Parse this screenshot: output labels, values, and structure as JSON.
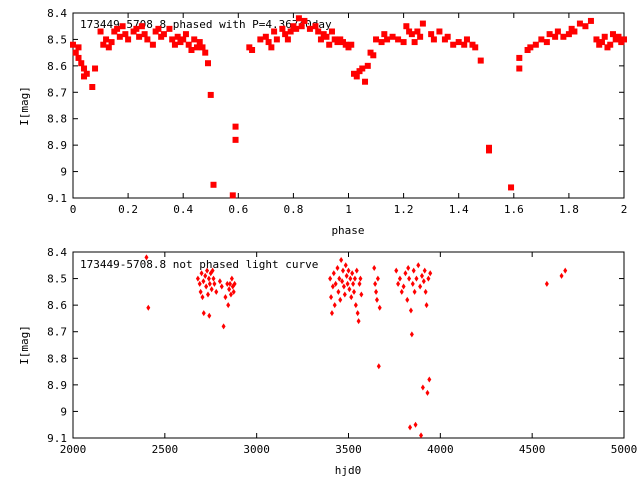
{
  "chart_data": [
    {
      "type": "scatter",
      "title": "173449-5708.8 phased with P=4.36740day",
      "xlabel": "phase",
      "ylabel": "I[mag]",
      "xlim": [
        0,
        2
      ],
      "ylim": [
        8.4,
        9.1
      ],
      "y_reversed": true,
      "grid": false,
      "marker_color": "#ff0000",
      "marker": "square",
      "x_ticks": [
        0,
        0.2,
        0.4,
        0.6,
        0.8,
        1,
        1.2,
        1.4,
        1.6,
        1.8,
        2
      ],
      "x_tick_labels": [
        "0",
        "0.2",
        "0.4",
        "0.6",
        "0.8",
        "1",
        "1.2",
        "1.4",
        "1.6",
        "1.8",
        "2"
      ],
      "y_ticks": [
        8.4,
        8.5,
        8.6,
        8.7,
        8.8,
        8.9,
        9,
        9.1
      ],
      "y_tick_labels": [
        "8.4",
        "8.5",
        "8.6",
        "8.7",
        "8.8",
        "8.9",
        "9",
        "9.1"
      ],
      "points": [
        [
          0.0,
          8.52
        ],
        [
          0.01,
          8.55
        ],
        [
          0.02,
          8.53
        ],
        [
          0.02,
          8.57
        ],
        [
          0.03,
          8.59
        ],
        [
          0.04,
          8.61
        ],
        [
          0.04,
          8.64
        ],
        [
          0.05,
          8.63
        ],
        [
          0.07,
          8.68
        ],
        [
          0.08,
          8.61
        ],
        [
          0.1,
          8.47
        ],
        [
          0.11,
          8.52
        ],
        [
          0.12,
          8.5
        ],
        [
          0.13,
          8.53
        ],
        [
          0.14,
          8.51
        ],
        [
          0.15,
          8.47
        ],
        [
          0.16,
          8.46
        ],
        [
          0.17,
          8.49
        ],
        [
          0.18,
          8.45
        ],
        [
          0.19,
          8.48
        ],
        [
          0.2,
          8.5
        ],
        [
          0.22,
          8.47
        ],
        [
          0.23,
          8.46
        ],
        [
          0.24,
          8.49
        ],
        [
          0.25,
          8.45
        ],
        [
          0.26,
          8.48
        ],
        [
          0.27,
          8.5
        ],
        [
          0.29,
          8.52
        ],
        [
          0.3,
          8.47
        ],
        [
          0.31,
          8.46
        ],
        [
          0.32,
          8.49
        ],
        [
          0.33,
          8.48
        ],
        [
          0.35,
          8.46
        ],
        [
          0.36,
          8.5
        ],
        [
          0.37,
          8.52
        ],
        [
          0.38,
          8.49
        ],
        [
          0.39,
          8.51
        ],
        [
          0.4,
          8.5
        ],
        [
          0.41,
          8.48
        ],
        [
          0.42,
          8.52
        ],
        [
          0.43,
          8.54
        ],
        [
          0.44,
          8.5
        ],
        [
          0.45,
          8.53
        ],
        [
          0.46,
          8.51
        ],
        [
          0.47,
          8.53
        ],
        [
          0.48,
          8.55
        ],
        [
          0.49,
          8.59
        ],
        [
          0.5,
          8.71
        ],
        [
          0.51,
          9.05
        ],
        [
          0.58,
          9.09
        ],
        [
          0.59,
          8.83
        ],
        [
          0.59,
          8.88
        ],
        [
          0.64,
          8.53
        ],
        [
          0.65,
          8.54
        ],
        [
          0.68,
          8.5
        ],
        [
          0.7,
          8.49
        ],
        [
          0.71,
          8.51
        ],
        [
          0.72,
          8.53
        ],
        [
          0.73,
          8.47
        ],
        [
          0.74,
          8.5
        ],
        [
          0.76,
          8.46
        ],
        [
          0.77,
          8.48
        ],
        [
          0.78,
          8.5
        ],
        [
          0.79,
          8.47
        ],
        [
          0.8,
          8.45
        ],
        [
          0.81,
          8.46
        ],
        [
          0.82,
          8.42
        ],
        [
          0.83,
          8.45
        ],
        [
          0.84,
          8.43
        ],
        [
          0.86,
          8.46
        ],
        [
          0.88,
          8.45
        ],
        [
          0.89,
          8.47
        ],
        [
          0.9,
          8.5
        ],
        [
          0.91,
          8.48
        ],
        [
          0.92,
          8.49
        ],
        [
          0.93,
          8.52
        ],
        [
          0.94,
          8.47
        ],
        [
          0.95,
          8.5
        ],
        [
          0.96,
          8.51
        ],
        [
          0.97,
          8.5
        ],
        [
          0.98,
          8.51
        ],
        [
          0.99,
          8.52
        ],
        [
          1.0,
          8.53
        ],
        [
          1.01,
          8.52
        ],
        [
          1.02,
          8.63
        ],
        [
          1.03,
          8.64
        ],
        [
          1.04,
          8.62
        ],
        [
          1.05,
          8.61
        ],
        [
          1.06,
          8.66
        ],
        [
          1.07,
          8.6
        ],
        [
          1.08,
          8.55
        ],
        [
          1.09,
          8.56
        ],
        [
          1.1,
          8.5
        ],
        [
          1.12,
          8.51
        ],
        [
          1.13,
          8.48
        ],
        [
          1.14,
          8.5
        ],
        [
          1.16,
          8.49
        ],
        [
          1.18,
          8.5
        ],
        [
          1.2,
          8.51
        ],
        [
          1.21,
          8.45
        ],
        [
          1.22,
          8.47
        ],
        [
          1.23,
          8.48
        ],
        [
          1.24,
          8.51
        ],
        [
          1.25,
          8.47
        ],
        [
          1.26,
          8.49
        ],
        [
          1.27,
          8.44
        ],
        [
          1.3,
          8.48
        ],
        [
          1.31,
          8.5
        ],
        [
          1.33,
          8.47
        ],
        [
          1.35,
          8.5
        ],
        [
          1.36,
          8.49
        ],
        [
          1.38,
          8.52
        ],
        [
          1.4,
          8.51
        ],
        [
          1.42,
          8.52
        ],
        [
          1.43,
          8.5
        ],
        [
          1.45,
          8.52
        ],
        [
          1.46,
          8.53
        ],
        [
          1.48,
          8.58
        ],
        [
          1.51,
          8.91
        ],
        [
          1.51,
          8.92
        ],
        [
          1.59,
          9.06
        ],
        [
          1.62,
          8.57
        ],
        [
          1.62,
          8.61
        ],
        [
          1.65,
          8.54
        ],
        [
          1.66,
          8.53
        ],
        [
          1.68,
          8.52
        ],
        [
          1.7,
          8.5
        ],
        [
          1.72,
          8.51
        ],
        [
          1.73,
          8.48
        ],
        [
          1.75,
          8.49
        ],
        [
          1.76,
          8.47
        ],
        [
          1.78,
          8.49
        ],
        [
          1.8,
          8.48
        ],
        [
          1.81,
          8.46
        ],
        [
          1.82,
          8.47
        ],
        [
          1.84,
          8.44
        ],
        [
          1.86,
          8.45
        ],
        [
          1.88,
          8.43
        ],
        [
          1.9,
          8.5
        ],
        [
          1.91,
          8.52
        ],
        [
          1.92,
          8.51
        ],
        [
          1.93,
          8.49
        ],
        [
          1.94,
          8.53
        ],
        [
          1.95,
          8.52
        ],
        [
          1.96,
          8.48
        ],
        [
          1.97,
          8.5
        ],
        [
          1.98,
          8.49
        ],
        [
          1.99,
          8.51
        ],
        [
          2.0,
          8.5
        ]
      ]
    },
    {
      "type": "scatter",
      "title": "173449-5708.8 not phased light curve",
      "xlabel": "hjd0",
      "ylabel": "I[mag]",
      "xlim": [
        2000,
        5000
      ],
      "ylim": [
        8.4,
        9.1
      ],
      "y_reversed": true,
      "grid": false,
      "marker_color": "#ff0000",
      "marker": "diamond",
      "x_ticks": [
        2000,
        2500,
        3000,
        3500,
        4000,
        4500,
        5000
      ],
      "x_tick_labels": [
        "2000",
        "2500",
        "3000",
        "3500",
        "4000",
        "4500",
        "5000"
      ],
      "y_ticks": [
        8.4,
        8.5,
        8.6,
        8.7,
        8.8,
        8.9,
        9,
        9.1
      ],
      "y_tick_labels": [
        "8.4",
        "8.5",
        "8.6",
        "8.7",
        "8.8",
        "8.9",
        "9",
        "9.1"
      ],
      "points": [
        [
          2400,
          8.42
        ],
        [
          2410,
          8.61
        ],
        [
          2680,
          8.5
        ],
        [
          2690,
          8.52
        ],
        [
          2695,
          8.55
        ],
        [
          2700,
          8.48
        ],
        [
          2705,
          8.57
        ],
        [
          2710,
          8.51
        ],
        [
          2712,
          8.63
        ],
        [
          2720,
          8.49
        ],
        [
          2725,
          8.53
        ],
        [
          2730,
          8.47
        ],
        [
          2735,
          8.56
        ],
        [
          2740,
          8.5
        ],
        [
          2742,
          8.64
        ],
        [
          2745,
          8.52
        ],
        [
          2750,
          8.48
        ],
        [
          2755,
          8.54
        ],
        [
          2760,
          8.47
        ],
        [
          2765,
          8.5
        ],
        [
          2770,
          8.52
        ],
        [
          2780,
          8.55
        ],
        [
          2800,
          8.51
        ],
        [
          2810,
          8.53
        ],
        [
          2820,
          8.68
        ],
        [
          2830,
          8.57
        ],
        [
          2840,
          8.52
        ],
        [
          2845,
          8.6
        ],
        [
          2850,
          8.54
        ],
        [
          2855,
          8.52
        ],
        [
          2860,
          8.56
        ],
        [
          2865,
          8.5
        ],
        [
          2870,
          8.53
        ],
        [
          2875,
          8.55
        ],
        [
          2880,
          8.52
        ],
        [
          3400,
          8.5
        ],
        [
          3405,
          8.57
        ],
        [
          3410,
          8.63
        ],
        [
          3415,
          8.53
        ],
        [
          3420,
          8.48
        ],
        [
          3425,
          8.6
        ],
        [
          3430,
          8.52
        ],
        [
          3440,
          8.46
        ],
        [
          3445,
          8.55
        ],
        [
          3450,
          8.5
        ],
        [
          3455,
          8.58
        ],
        [
          3460,
          8.43
        ],
        [
          3465,
          8.51
        ],
        [
          3470,
          8.47
        ],
        [
          3475,
          8.53
        ],
        [
          3480,
          8.56
        ],
        [
          3485,
          8.45
        ],
        [
          3490,
          8.49
        ],
        [
          3495,
          8.52
        ],
        [
          3500,
          8.47
        ],
        [
          3505,
          8.54
        ],
        [
          3510,
          8.5
        ],
        [
          3515,
          8.57
        ],
        [
          3520,
          8.48
        ],
        [
          3525,
          8.52
        ],
        [
          3530,
          8.55
        ],
        [
          3535,
          8.5
        ],
        [
          3540,
          8.6
        ],
        [
          3545,
          8.47
        ],
        [
          3550,
          8.63
        ],
        [
          3555,
          8.66
        ],
        [
          3560,
          8.52
        ],
        [
          3565,
          8.5
        ],
        [
          3570,
          8.56
        ],
        [
          3640,
          8.46
        ],
        [
          3645,
          8.52
        ],
        [
          3650,
          8.55
        ],
        [
          3655,
          8.58
        ],
        [
          3660,
          8.5
        ],
        [
          3665,
          8.83
        ],
        [
          3670,
          8.61
        ],
        [
          3760,
          8.47
        ],
        [
          3770,
          8.52
        ],
        [
          3780,
          8.5
        ],
        [
          3790,
          8.55
        ],
        [
          3800,
          8.53
        ],
        [
          3810,
          8.48
        ],
        [
          3820,
          8.58
        ],
        [
          3825,
          8.46
        ],
        [
          3830,
          8.5
        ],
        [
          3835,
          9.06
        ],
        [
          3840,
          8.62
        ],
        [
          3845,
          8.71
        ],
        [
          3850,
          8.52
        ],
        [
          3855,
          8.47
        ],
        [
          3860,
          8.55
        ],
        [
          3865,
          9.05
        ],
        [
          3870,
          8.5
        ],
        [
          3880,
          8.45
        ],
        [
          3890,
          8.53
        ],
        [
          3895,
          9.09
        ],
        [
          3900,
          8.49
        ],
        [
          3905,
          8.91
        ],
        [
          3910,
          8.51
        ],
        [
          3915,
          8.47
        ],
        [
          3920,
          8.55
        ],
        [
          3925,
          8.6
        ],
        [
          3930,
          8.93
        ],
        [
          3935,
          8.5
        ],
        [
          3940,
          8.88
        ],
        [
          3945,
          8.48
        ],
        [
          4580,
          8.52
        ],
        [
          4660,
          8.49
        ],
        [
          4680,
          8.47
        ]
      ]
    }
  ]
}
